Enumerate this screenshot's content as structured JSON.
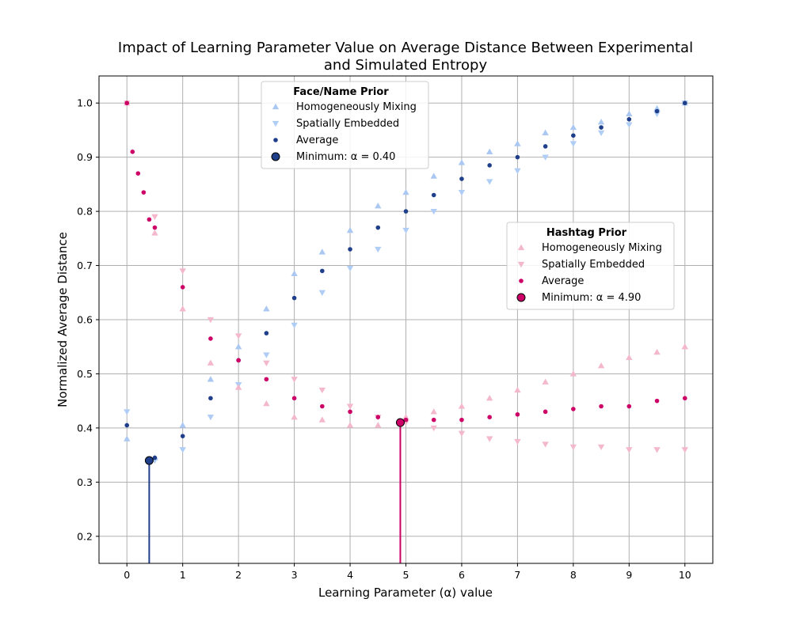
{
  "chart_data": {
    "type": "scatter",
    "title": [
      "Impact of Learning Parameter Value on Average Distance Between Experimental",
      "and Simulated Entropy"
    ],
    "xlabel": "Learning Parameter (α) value",
    "ylabel": "Normalized Average Distance",
    "xlim": [
      -0.5,
      10.5
    ],
    "ylim": [
      0.15,
      1.05
    ],
    "xticks": [
      0,
      1,
      2,
      3,
      4,
      5,
      6,
      7,
      8,
      9,
      10
    ],
    "yticks": [
      0.2,
      0.3,
      0.4,
      0.5,
      0.6,
      0.7,
      0.8,
      0.9,
      1.0
    ],
    "grid": true,
    "colors": {
      "face_hm": "#aac8f2",
      "face_se": "#b0cef5",
      "face_avg": "#1f3f8a",
      "hash_hm": "#f4b8cc",
      "hash_se": "#f4b8cc",
      "hash_avg": "#cc0066"
    },
    "groups": [
      {
        "name": "Face/Name Prior",
        "legend_position": "top-center",
        "series": [
          {
            "name": "Homogeneously Mixing",
            "marker": "triangle-up",
            "color": "#aac8f2",
            "x": [
              0,
              0.5,
              1,
              1.5,
              2,
              2.5,
              3,
              3.5,
              4,
              4.5,
              5,
              5.5,
              6,
              6.5,
              7,
              7.5,
              8,
              8.5,
              9,
              9.5,
              10
            ],
            "y": [
              0.38,
              0.345,
              0.405,
              0.49,
              0.55,
              0.62,
              0.685,
              0.725,
              0.765,
              0.81,
              0.835,
              0.865,
              0.89,
              0.91,
              0.925,
              0.945,
              0.955,
              0.965,
              0.98,
              0.99,
              1.0
            ]
          },
          {
            "name": "Spatially Embedded",
            "marker": "triangle-down",
            "color": "#b0cef5",
            "x": [
              0,
              0.5,
              1,
              1.5,
              2,
              2.5,
              3,
              3.5,
              4,
              4.5,
              5,
              5.5,
              6,
              6.5,
              7,
              7.5,
              8,
              8.5,
              9,
              9.5,
              10
            ],
            "y": [
              0.43,
              0.34,
              0.36,
              0.42,
              0.48,
              0.535,
              0.59,
              0.65,
              0.695,
              0.73,
              0.765,
              0.8,
              0.835,
              0.855,
              0.875,
              0.9,
              0.925,
              0.945,
              0.96,
              0.98,
              1.0
            ]
          },
          {
            "name": "Average",
            "marker": "circle",
            "color": "#1f3f8a",
            "x": [
              0,
              0.5,
              1,
              1.5,
              2,
              2.5,
              3,
              3.5,
              4,
              4.5,
              5,
              5.5,
              6,
              6.5,
              7,
              7.5,
              8,
              8.5,
              9,
              9.5,
              10
            ],
            "y": [
              0.405,
              0.345,
              0.385,
              0.455,
              0.525,
              0.575,
              0.64,
              0.69,
              0.73,
              0.77,
              0.8,
              0.83,
              0.86,
              0.885,
              0.9,
              0.92,
              0.94,
              0.955,
              0.97,
              0.985,
              1.0
            ]
          }
        ],
        "minimum": {
          "label": "Minimum: α = 0.40",
          "x": 0.4,
          "y": 0.34,
          "color": "#1f3f8a"
        }
      },
      {
        "name": "Hashtag Prior",
        "legend_position": "center-right",
        "series": [
          {
            "name": "Homogeneously Mixing",
            "marker": "triangle-up",
            "color": "#f4b8cc",
            "x": [
              0,
              0.5,
              1,
              1.5,
              2,
              2.5,
              3,
              3.5,
              4,
              4.5,
              5,
              5.5,
              6,
              6.5,
              7,
              7.5,
              8,
              8.5,
              9,
              9.5,
              10
            ],
            "y": [
              1.0,
              0.76,
              0.62,
              0.52,
              0.475,
              0.445,
              0.42,
              0.415,
              0.405,
              0.405,
              0.42,
              0.43,
              0.44,
              0.455,
              0.47,
              0.485,
              0.5,
              0.515,
              0.53,
              0.54,
              0.55
            ]
          },
          {
            "name": "Spatially Embedded",
            "marker": "triangle-down",
            "color": "#f4b8cc",
            "x": [
              0,
              0.5,
              1,
              1.5,
              2,
              2.5,
              3,
              3.5,
              4,
              4.5,
              5,
              5.5,
              6,
              6.5,
              7,
              7.5,
              8,
              8.5,
              9,
              9.5,
              10
            ],
            "y": [
              1.0,
              0.79,
              0.69,
              0.6,
              0.57,
              0.52,
              0.49,
              0.47,
              0.44,
              0.42,
              0.41,
              0.4,
              0.39,
              0.38,
              0.375,
              0.37,
              0.365,
              0.365,
              0.36,
              0.36,
              0.36
            ]
          },
          {
            "name": "Average",
            "marker": "circle",
            "color": "#cc0066",
            "x": [
              0,
              0.1,
              0.2,
              0.3,
              0.4,
              0.5,
              1,
              1.5,
              2,
              2.5,
              3,
              3.5,
              4,
              4.5,
              5,
              5.5,
              6,
              6.5,
              7,
              7.5,
              8,
              8.5,
              9,
              9.5,
              10
            ],
            "y": [
              1.0,
              0.91,
              0.87,
              0.835,
              0.785,
              0.77,
              0.66,
              0.565,
              0.525,
              0.49,
              0.455,
              0.44,
              0.43,
              0.42,
              0.415,
              0.415,
              0.415,
              0.42,
              0.425,
              0.43,
              0.435,
              0.44,
              0.44,
              0.45,
              0.455
            ]
          }
        ],
        "minimum": {
          "label": "Minimum: α = 4.90",
          "x": 4.9,
          "y": 0.41,
          "color": "#cc0066"
        }
      }
    ]
  }
}
